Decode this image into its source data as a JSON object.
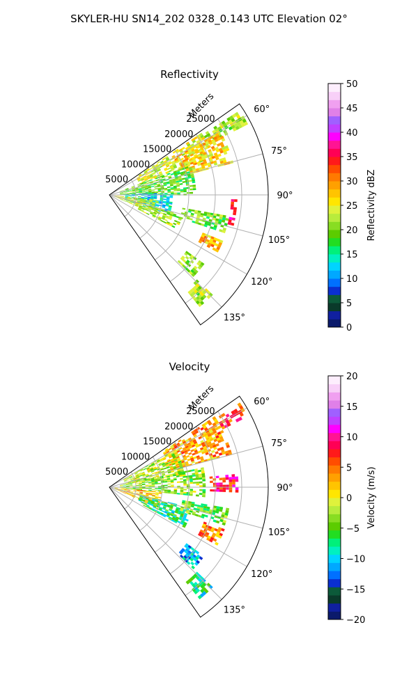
{
  "figure_title": "SKYLER-HU  SN14_202  0328_0.143 UTC Elevation 02°",
  "chart_data": [
    {
      "type": "heatmap",
      "projection": "polar-sector",
      "title": "Reflectivity",
      "range_label": "Meters",
      "range_ticks": [
        "5000",
        "10000",
        "15000",
        "20000",
        "25000"
      ],
      "range_values": [
        5000,
        10000,
        15000,
        20000,
        25000
      ],
      "range_max": 30000,
      "azimuth_range": [
        55,
        145
      ],
      "azimuth_ticks": [
        "60°",
        "75°",
        "90°",
        "105°",
        "120°",
        "135°"
      ],
      "azimuth_values": [
        60,
        75,
        90,
        105,
        120,
        135
      ],
      "grid": true,
      "colorbar": {
        "label": "Reflectivity dBZ",
        "min": 0,
        "max": 50,
        "ticks": [
          "0",
          "5",
          "10",
          "15",
          "20",
          "25",
          "30",
          "35",
          "40",
          "45",
          "50"
        ],
        "tick_values": [
          0,
          5,
          10,
          15,
          20,
          25,
          30,
          35,
          40,
          45,
          50
        ],
        "colors": [
          "#0b1a6b",
          "#1020a0",
          "#0a3a2a",
          "#0c5a3a",
          "#0a2fd0",
          "#0070ff",
          "#00a8ff",
          "#00d4ff",
          "#00f0c0",
          "#00f07a",
          "#22dd22",
          "#5ccc00",
          "#88dd22",
          "#b8ec3c",
          "#dff23c",
          "#ffe600",
          "#ffc400",
          "#ffa000",
          "#ff7a00",
          "#ff4d00",
          "#ff1a1a",
          "#ff0055",
          "#ff1493",
          "#ff00ff",
          "#c040ff",
          "#a060ff",
          "#e080e8",
          "#f0a0f0",
          "#f8d0f8",
          "#fdeefd"
        ]
      },
      "data_regions": [
        {
          "az": [
            57,
            63
          ],
          "r": [
            21000,
            29000
          ],
          "value": 22
        },
        {
          "az": [
            56,
            70
          ],
          "r": [
            6000,
            21000
          ],
          "value": 24
        },
        {
          "az": [
            60,
            75
          ],
          "r": [
            14000,
            24000
          ],
          "value": 27
        },
        {
          "az": [
            70,
            90
          ],
          "r": [
            2000,
            16000
          ],
          "value": 19
        },
        {
          "az": [
            88,
            108
          ],
          "r": [
            3000,
            12000
          ],
          "value": 13
        },
        {
          "az": [
            96,
            112
          ],
          "r": [
            1000,
            9000
          ],
          "value": 24
        },
        {
          "az": [
            105,
            117
          ],
          "r": [
            6000,
            14000
          ],
          "value": 22
        },
        {
          "az": [
            100,
            108
          ],
          "r": [
            14000,
            23000
          ],
          "value": 20
        },
        {
          "az": [
            112,
            118
          ],
          "r": [
            19000,
            23000
          ],
          "value": 28
        },
        {
          "az": [
            126,
            134
          ],
          "r": [
            18000,
            22000
          ],
          "value": 21
        },
        {
          "az": [
            134,
            140
          ],
          "r": [
            23000,
            27000
          ],
          "value": 22
        },
        {
          "az": [
            92,
            104
          ],
          "r": [
            23000,
            24000
          ],
          "value": 35
        }
      ]
    },
    {
      "type": "heatmap",
      "projection": "polar-sector",
      "title": "Velocity",
      "range_label": "Meters",
      "range_ticks": [
        "5000",
        "10000",
        "15000",
        "20000",
        "25000"
      ],
      "range_values": [
        5000,
        10000,
        15000,
        20000,
        25000
      ],
      "range_max": 30000,
      "azimuth_range": [
        55,
        145
      ],
      "azimuth_ticks": [
        "60°",
        "75°",
        "90°",
        "105°",
        "120°",
        "135°"
      ],
      "azimuth_values": [
        60,
        75,
        90,
        105,
        120,
        135
      ],
      "grid": true,
      "colorbar": {
        "label": "Velocity (m/s)",
        "min": -20,
        "max": 20,
        "ticks": [
          "−20",
          "−15",
          "−10",
          "−5",
          "0",
          "5",
          "10",
          "15",
          "20"
        ],
        "tick_values": [
          -20,
          -15,
          -10,
          -5,
          0,
          5,
          10,
          15,
          20
        ],
        "colors": [
          "#0b1a6b",
          "#1020a0",
          "#0a3a2a",
          "#0c5a3a",
          "#0a2fd0",
          "#0070ff",
          "#00a8ff",
          "#00d4ff",
          "#00f0c0",
          "#00f07a",
          "#22dd22",
          "#5ccc00",
          "#88dd22",
          "#b8ec3c",
          "#dff23c",
          "#ffe600",
          "#ffc400",
          "#ffa000",
          "#ff7a00",
          "#ff4d00",
          "#ff1a1a",
          "#ff0055",
          "#ff1493",
          "#ff00ff",
          "#c040ff",
          "#a060ff",
          "#e080e8",
          "#f0a0f0",
          "#f8d0f8",
          "#fdeefd"
        ]
      },
      "data_regions": [
        {
          "az": [
            57,
            63
          ],
          "r": [
            21000,
            29000
          ],
          "value": 7
        },
        {
          "az": [
            56,
            75
          ],
          "r": [
            12000,
            24000
          ],
          "value": 3
        },
        {
          "az": [
            60,
            80
          ],
          "r": [
            3000,
            14000
          ],
          "value": -2
        },
        {
          "az": [
            78,
            95
          ],
          "r": [
            2000,
            18000
          ],
          "value": -3
        },
        {
          "az": [
            95,
            112
          ],
          "r": [
            1000,
            10000
          ],
          "value": 2
        },
        {
          "az": [
            104,
            118
          ],
          "r": [
            6000,
            16000
          ],
          "value": -7
        },
        {
          "az": [
            100,
            108
          ],
          "r": [
            14000,
            23000
          ],
          "value": -4
        },
        {
          "az": [
            110,
            118
          ],
          "r": [
            19000,
            23000
          ],
          "value": 4
        },
        {
          "az": [
            126,
            134
          ],
          "r": [
            18000,
            22000
          ],
          "value": -11
        },
        {
          "az": [
            134,
            140
          ],
          "r": [
            23000,
            27000
          ],
          "value": -8
        },
        {
          "az": [
            84,
            92
          ],
          "r": [
            19000,
            24000
          ],
          "value": 8
        }
      ]
    }
  ]
}
